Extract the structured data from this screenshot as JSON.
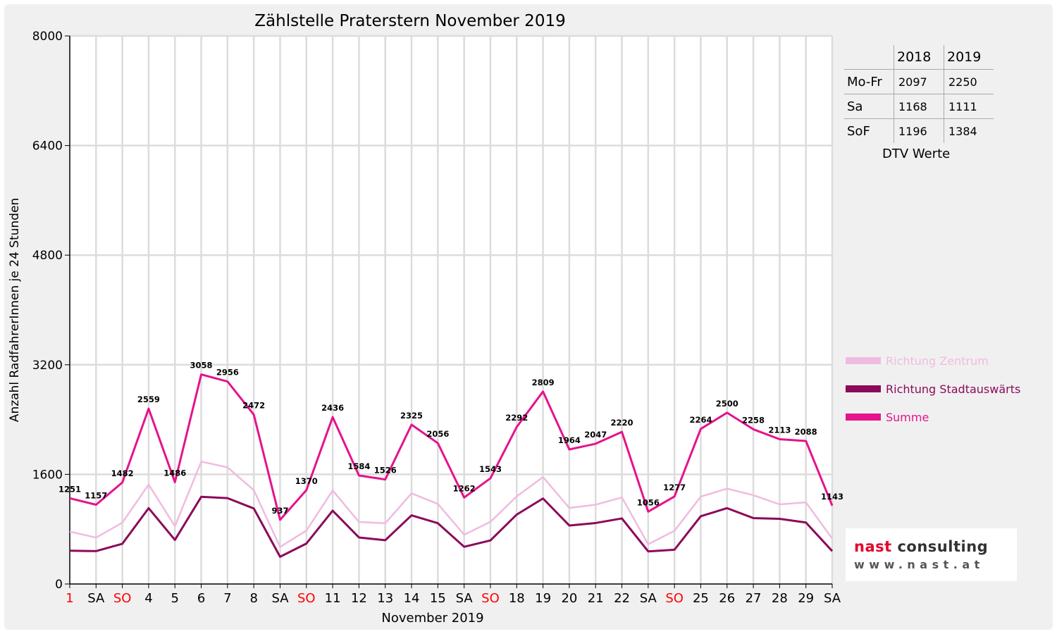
{
  "chart_data": {
    "type": "line",
    "title": "Zählstelle Praterstern November 2019",
    "xlabel": "November 2019",
    "ylabel": "Anzahl RadfahrerInnen je 24 Stunden",
    "ylim": [
      0,
      8000
    ],
    "yticks": [
      "0",
      "1600",
      "3200",
      "4800",
      "6400",
      "8000"
    ],
    "grid": true,
    "legend_position": "right",
    "categories": [
      "1",
      "SA",
      "SO",
      "4",
      "5",
      "6",
      "7",
      "8",
      "SA",
      "SO",
      "11",
      "12",
      "13",
      "14",
      "15",
      "SA",
      "SO",
      "18",
      "19",
      "20",
      "21",
      "22",
      "SA",
      "SO",
      "25",
      "26",
      "27",
      "28",
      "29",
      "SA"
    ],
    "highlight_categories": [
      0,
      2,
      9,
      16,
      23
    ],
    "highlight_color": "#ff0000",
    "series": [
      {
        "name": "Richtung Zentrum",
        "color": "#f0bbe0",
        "values": [
          765,
          677,
          895,
          1452,
          843,
          1786,
          1703,
          1370,
          540,
          780,
          1366,
          905,
          887,
          1323,
          1169,
          719,
          907,
          1279,
          1561,
          1110,
          1157,
          1263,
          580,
          777,
          1275,
          1393,
          1296,
          1162,
          1191,
          663
        ]
      },
      {
        "name": "Richtung Stadtauswärts",
        "color": "#8b0a5a",
        "values": [
          486,
          480,
          587,
          1107,
          643,
          1272,
          1253,
          1102,
          397,
          590,
          1070,
          679,
          639,
          1002,
          887,
          543,
          636,
          1013,
          1248,
          854,
          890,
          957,
          476,
          500,
          989,
          1107,
          962,
          951,
          897,
          480
        ]
      },
      {
        "name": "Summe",
        "color": "#e5138c",
        "values": [
          1251,
          1157,
          1482,
          2559,
          1486,
          3058,
          2956,
          2472,
          937,
          1370,
          2436,
          1584,
          1526,
          2325,
          2056,
          1262,
          1543,
          2292,
          2809,
          1964,
          2047,
          2220,
          1056,
          1277,
          2264,
          2500,
          2258,
          2113,
          2088,
          1143
        ],
        "labels": [
          "1251",
          "1157",
          "1482",
          "2559",
          "1486",
          "3058",
          "2956",
          "2472",
          "937",
          "1370",
          "2436",
          "1584",
          "1526",
          "2325",
          "2056",
          "1262",
          "1543",
          "2292",
          "2809",
          "1964",
          "2047",
          "2220",
          "1056",
          "1277",
          "2264",
          "2500",
          "2258",
          "2113",
          "2088",
          "1143"
        ]
      }
    ]
  },
  "dtv_table": {
    "headers": [
      "",
      "2018",
      "2019"
    ],
    "rows": [
      {
        "label": "Mo-Fr",
        "v2018": "2097",
        "v2019": "2250"
      },
      {
        "label": "Sa",
        "v2018": "1168",
        "v2019": "1111"
      },
      {
        "label": "SoF",
        "v2018": "1196",
        "v2019": "1384"
      }
    ],
    "caption": "DTV Werte"
  },
  "legend": [
    {
      "label": "Richtung Zentrum",
      "color": "#f0bbe0"
    },
    {
      "label": "Richtung Stadtauswärts",
      "color": "#8b0a5a"
    },
    {
      "label": "Summe",
      "color": "#e5138c"
    }
  ],
  "logo": {
    "name_a": "nast",
    "name_b": "consulting",
    "url": "www.nast.at"
  }
}
